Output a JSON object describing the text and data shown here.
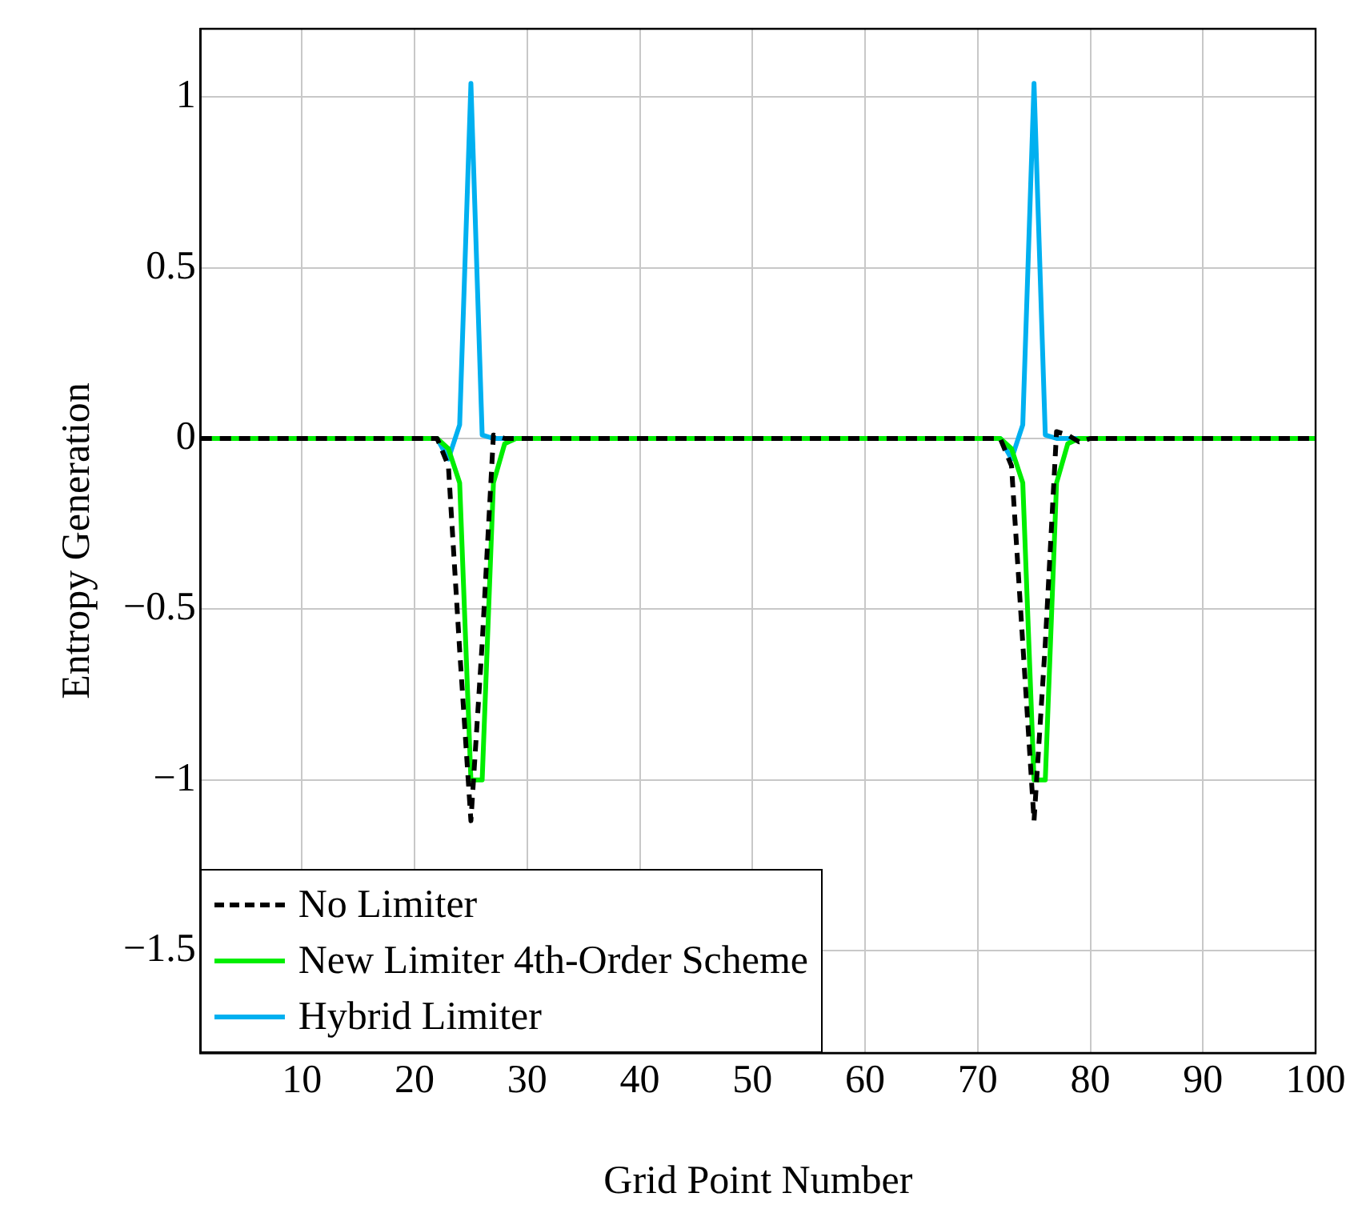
{
  "chart_data": {
    "type": "line",
    "xlabel": "Grid Point Number",
    "ylabel": "Entropy Generation",
    "xlim": [
      1,
      100
    ],
    "xticks": [
      10,
      20,
      30,
      40,
      50,
      60,
      70,
      80,
      90,
      100
    ],
    "ylim": [
      -1.8,
      1.2
    ],
    "yticks": [
      -1.5,
      -1,
      -0.5,
      0,
      0.5,
      1
    ],
    "grid": true,
    "legend": "bottom left",
    "marker": "none",
    "series": [
      {
        "name": "No Limiter",
        "color": "#000000",
        "line_style": "dashed",
        "x": [
          1,
          22,
          23,
          24,
          25,
          26,
          27,
          28,
          72,
          73,
          74,
          75,
          76,
          77,
          78,
          79,
          80,
          100
        ],
        "values": [
          0,
          0,
          -0.08,
          -0.62,
          -1.12,
          -0.6,
          0.01,
          0,
          0,
          -0.08,
          -0.6,
          -1.12,
          -0.6,
          0.02,
          0.01,
          -0.01,
          0,
          0
        ]
      },
      {
        "name": "New Limiter 4th-Order Scheme",
        "color": "#00ee00",
        "line_style": "solid",
        "x": [
          1,
          22,
          23,
          24,
          25,
          26,
          27,
          28,
          29,
          72,
          73,
          74,
          75,
          76,
          77,
          78,
          79,
          100
        ],
        "values": [
          0,
          0,
          -0.03,
          -0.13,
          -1,
          -1,
          -0.13,
          -0.015,
          0,
          0,
          -0.03,
          -0.13,
          -1,
          -1,
          -0.13,
          -0.015,
          0,
          0
        ]
      },
      {
        "name": "Hybrid Limiter",
        "color": "#00b0f0",
        "line_style": "solid",
        "x": [
          1,
          22,
          23,
          24,
          25,
          26,
          27,
          72,
          73,
          74,
          75,
          76,
          77,
          100
        ],
        "values": [
          0,
          0,
          -0.06,
          0.04,
          1.04,
          0.01,
          0,
          0,
          -0.06,
          0.04,
          1.04,
          0.01,
          0,
          0
        ]
      }
    ]
  }
}
